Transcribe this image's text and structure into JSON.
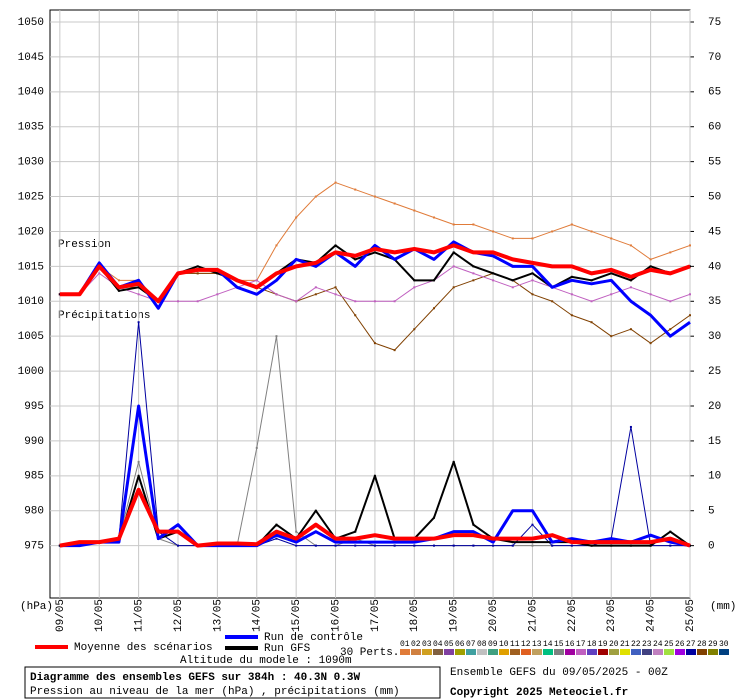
{
  "chart_data": {
    "type": "line",
    "x": [
      0,
      12,
      24,
      36,
      48,
      60,
      72,
      84,
      96,
      108,
      120,
      132,
      144,
      156,
      168,
      180,
      192,
      204,
      216,
      228,
      240,
      252,
      264,
      276,
      288,
      300,
      312,
      324,
      336,
      348,
      360,
      372,
      384
    ],
    "xlim": [
      -6,
      384
    ],
    "xticks": [
      {
        "value": 0,
        "label": "09/05"
      },
      {
        "value": 24,
        "label": "10/05"
      },
      {
        "value": 48,
        "label": "11/05"
      },
      {
        "value": 72,
        "label": "12/05"
      },
      {
        "value": 96,
        "label": "13/05"
      },
      {
        "value": 120,
        "label": "14/05"
      },
      {
        "value": 144,
        "label": "15/05"
      },
      {
        "value": 168,
        "label": "16/05"
      },
      {
        "value": 192,
        "label": "17/05"
      },
      {
        "value": 216,
        "label": "18/05"
      },
      {
        "value": 240,
        "label": "19/05"
      },
      {
        "value": 264,
        "label": "20/05"
      },
      {
        "value": 288,
        "label": "21/05"
      },
      {
        "value": 312,
        "label": "22/05"
      },
      {
        "value": 336,
        "label": "23/05"
      },
      {
        "value": 360,
        "label": "24/05"
      },
      {
        "value": 384,
        "label": "25/05"
      }
    ],
    "ylim": [
      967.5,
      1050
    ],
    "yticks": [
      975,
      980,
      985,
      990,
      995,
      1000,
      1005,
      1010,
      1015,
      1020,
      1025,
      1030,
      1035,
      1040,
      1045,
      1050
    ],
    "y2lim": [
      -7.5,
      75
    ],
    "y2ticks": [
      0,
      5,
      10,
      15,
      20,
      25,
      30,
      35,
      40,
      45,
      50,
      55,
      60,
      65,
      70,
      75
    ],
    "y_unit": "(hPa)",
    "y2_unit": "(mm)",
    "grid": true,
    "annotations": [
      "Pression",
      "Précipitations"
    ],
    "series": [
      {
        "color": "#e07b39",
        "width": 1,
        "values": [
          1011,
          1011,
          1015,
          1013,
          1013,
          1010,
          1014,
          1014,
          1014,
          1013,
          1013,
          1018,
          1022,
          1025,
          1027,
          1026,
          1025,
          1024,
          1023,
          1022,
          1021,
          1021,
          1020,
          1019,
          1019,
          1020,
          1021,
          1020,
          1019,
          1018,
          1016,
          1017,
          1018
        ]
      },
      {
        "color": "#804000",
        "width": 1,
        "values": [
          1011,
          1011,
          1015,
          1012,
          1012,
          1010,
          1014,
          1014,
          1014,
          1013,
          1012,
          1011,
          1010,
          1011,
          1012,
          1008,
          1004,
          1003,
          1006,
          1009,
          1012,
          1013,
          1014,
          1013,
          1011,
          1010,
          1008,
          1007,
          1005,
          1006,
          1004,
          1006,
          1008
        ]
      },
      {
        "color": "#c060c0",
        "width": 1,
        "values": [
          1011,
          1011,
          1014,
          1012,
          1011,
          1010,
          1010,
          1010,
          1011,
          1012,
          1013,
          1011,
          1010,
          1012,
          1011,
          1010,
          1010,
          1010,
          1012,
          1013,
          1015,
          1014,
          1013,
          1012,
          1013,
          1012,
          1011,
          1010,
          1011,
          1012,
          1011,
          1010,
          1011
        ]
      },
      {
        "color": "#808080",
        "width": 1,
        "axis": "y2",
        "values": [
          0,
          0,
          0.5,
          1,
          12,
          1,
          0,
          0,
          0,
          0,
          14,
          30,
          2,
          0,
          0,
          1,
          0,
          0,
          0,
          0,
          0,
          0,
          0,
          0,
          0,
          0,
          0,
          0,
          0,
          0,
          0,
          0,
          0
        ]
      },
      {
        "color": "#0000a0",
        "width": 1,
        "axis": "y2",
        "values": [
          0,
          0,
          0.5,
          1,
          32,
          2,
          0,
          0,
          0,
          0,
          0,
          1,
          0,
          0,
          0,
          0,
          0,
          0,
          0,
          0,
          0,
          0,
          0,
          0,
          3,
          0,
          0,
          0,
          1,
          17,
          0,
          0,
          0
        ]
      },
      {
        "name": "Run GFS",
        "color": "#000000",
        "width": 2,
        "values": [
          1011,
          1011,
          1015,
          1011.5,
          1012,
          1010,
          1014,
          1015,
          1014,
          1013,
          1012,
          1014,
          1016,
          1015.5,
          1018,
          1016,
          1017,
          1016,
          1013,
          1013,
          1017,
          1015,
          1014,
          1013,
          1014,
          1012,
          1013.5,
          1013,
          1014,
          1013,
          1015,
          1014,
          1015
        ]
      },
      {
        "color": "#000000",
        "width": 2,
        "axis": "y2",
        "values": [
          0,
          0,
          0.5,
          0.5,
          10,
          1,
          2,
          0,
          0,
          0,
          0,
          3,
          1,
          5,
          1,
          2,
          10,
          1,
          1,
          4,
          12,
          3,
          1,
          0.5,
          0.5,
          0.5,
          0.5,
          0,
          0,
          0,
          0,
          2,
          0
        ]
      },
      {
        "name": "Run de contrôle",
        "color": "#0000ff",
        "width": 3,
        "values": [
          1011,
          1011,
          1015.5,
          1012,
          1013,
          1009,
          1014,
          1014.5,
          1014.5,
          1012,
          1011,
          1013,
          1016,
          1015,
          1017,
          1015,
          1018,
          1016,
          1017.5,
          1016,
          1018.5,
          1017,
          1016.5,
          1015,
          1015,
          1012,
          1013,
          1012.5,
          1013,
          1010,
          1008,
          1005,
          1007
        ]
      },
      {
        "color": "#0000ff",
        "width": 3,
        "axis": "y2",
        "values": [
          0,
          0,
          0.5,
          0.5,
          20,
          1,
          3,
          0,
          0,
          0,
          0,
          1.5,
          0.5,
          2,
          0.5,
          0.5,
          0.5,
          0.5,
          0.5,
          1,
          2,
          2,
          0.5,
          5,
          5,
          0.5,
          1,
          0.5,
          1,
          0.5,
          1.5,
          0.5,
          0
        ]
      },
      {
        "name": "Moyenne des scénarios",
        "color": "#ff0000",
        "width": 4,
        "values": [
          1011,
          1011,
          1015,
          1012,
          1012.5,
          1010,
          1014,
          1014.5,
          1014.5,
          1013,
          1012,
          1014,
          1015,
          1015.5,
          1017,
          1016.5,
          1017.5,
          1017,
          1017.5,
          1017,
          1018,
          1017,
          1017,
          1016,
          1015.5,
          1015,
          1015,
          1014,
          1014.5,
          1013.5,
          1014.5,
          1014,
          1015
        ]
      },
      {
        "color": "#ff0000",
        "width": 4,
        "axis": "y2",
        "values": [
          0,
          0.5,
          0.5,
          1,
          8,
          2,
          2,
          0,
          0.3,
          0.3,
          0.2,
          2,
          1,
          3,
          1,
          1,
          1.5,
          1,
          1,
          1,
          1.5,
          1.5,
          1,
          1,
          1,
          1.5,
          0.5,
          0.5,
          0.5,
          0.5,
          0.5,
          1,
          0
        ]
      }
    ],
    "members_label": "30 Perts.",
    "members": [
      {
        "label": "01",
        "color": "#e07b39"
      },
      {
        "label": "02",
        "color": "#d08040"
      },
      {
        "label": "03",
        "color": "#d0a020"
      },
      {
        "label": "04",
        "color": "#806040"
      },
      {
        "label": "05",
        "color": "#8040a0"
      },
      {
        "label": "06",
        "color": "#a0a000"
      },
      {
        "label": "07",
        "color": "#40a0a0"
      },
      {
        "label": "08",
        "color": "#c0c0c0"
      },
      {
        "label": "09",
        "color": "#40a080"
      },
      {
        "label": "10",
        "color": "#e0a000"
      },
      {
        "label": "11",
        "color": "#a06020"
      },
      {
        "label": "12",
        "color": "#e06020"
      },
      {
        "label": "13",
        "color": "#c0a060"
      },
      {
        "label": "14",
        "color": "#00c080"
      },
      {
        "label": "15",
        "color": "#808080"
      },
      {
        "label": "16",
        "color": "#a000a0"
      },
      {
        "label": "17",
        "color": "#c060c0"
      },
      {
        "label": "18",
        "color": "#6040c0"
      },
      {
        "label": "19",
        "color": "#a00000"
      },
      {
        "label": "20",
        "color": "#a0a040"
      },
      {
        "label": "21",
        "color": "#e0e000"
      },
      {
        "label": "22",
        "color": "#4060c0"
      },
      {
        "label": "23",
        "color": "#404080"
      },
      {
        "label": "24",
        "color": "#c080c0"
      },
      {
        "label": "25",
        "color": "#a0e040"
      },
      {
        "label": "26",
        "color": "#a000e0"
      },
      {
        "label": "27",
        "color": "#0000a0"
      },
      {
        "label": "28",
        "color": "#804000"
      },
      {
        "label": "29",
        "color": "#808000"
      },
      {
        "label": "30",
        "color": "#004080"
      }
    ],
    "altitude": "Altitude du modele : 1090m",
    "title": "Diagramme des ensembles GEFS sur 384h : 40.3N 0.3W",
    "subtitle": "Pression au niveau de la mer (hPa) , précipitations (mm)",
    "run_info": "Ensemble GEFS du 09/05/2025 - 00Z",
    "copyright": "Copyright 2025 Meteociel.fr"
  }
}
